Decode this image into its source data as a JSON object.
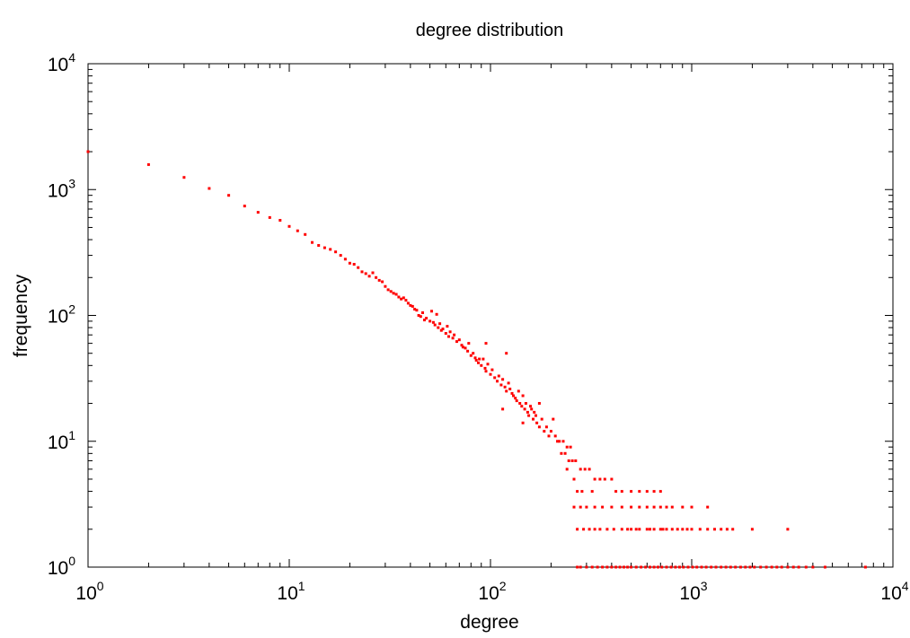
{
  "chart_data": {
    "type": "scatter",
    "title": "degree distribution",
    "xlabel": "degree",
    "ylabel": "frequency",
    "xscale": "log",
    "yscale": "log",
    "xlim": [
      1,
      10000
    ],
    "ylim": [
      1,
      10000
    ],
    "grid": false,
    "legend": "none",
    "marker_color": "#ff0000",
    "x_ticks": [
      {
        "base": "10",
        "exp": "0"
      },
      {
        "base": "10",
        "exp": "1"
      },
      {
        "base": "10",
        "exp": "2"
      },
      {
        "base": "10",
        "exp": "3"
      },
      {
        "base": "10",
        "exp": "4"
      }
    ],
    "y_ticks": [
      {
        "base": "10",
        "exp": "0"
      },
      {
        "base": "10",
        "exp": "1"
      },
      {
        "base": "10",
        "exp": "2"
      },
      {
        "base": "10",
        "exp": "3"
      },
      {
        "base": "10",
        "exp": "4"
      }
    ],
    "series": [
      {
        "points": [
          [
            1,
            2000
          ],
          [
            2,
            1580
          ],
          [
            3,
            1250
          ],
          [
            4,
            1020
          ],
          [
            5,
            900
          ],
          [
            6,
            740
          ],
          [
            7,
            660
          ],
          [
            8,
            600
          ],
          [
            9,
            570
          ],
          [
            10,
            510
          ],
          [
            11,
            470
          ],
          [
            12,
            440
          ],
          [
            13,
            380
          ],
          [
            14,
            360
          ],
          [
            15,
            345
          ],
          [
            16,
            335
          ],
          [
            17,
            320
          ],
          [
            18,
            300
          ],
          [
            19,
            280
          ],
          [
            20,
            260
          ],
          [
            21,
            255
          ],
          [
            22,
            240
          ],
          [
            23,
            222
          ],
          [
            24,
            215
          ],
          [
            25,
            205
          ],
          [
            26,
            218
          ],
          [
            27,
            200
          ],
          [
            28,
            190
          ],
          [
            29,
            185
          ],
          [
            30,
            170
          ],
          [
            31,
            160
          ],
          [
            32,
            155
          ],
          [
            33,
            150
          ],
          [
            34,
            147
          ],
          [
            35,
            140
          ],
          [
            36,
            135
          ],
          [
            37,
            138
          ],
          [
            38,
            132
          ],
          [
            39,
            125
          ],
          [
            40,
            120
          ],
          [
            41,
            118
          ],
          [
            42,
            112
          ],
          [
            43,
            110
          ],
          [
            44,
            100
          ],
          [
            45,
            98
          ],
          [
            46,
            105
          ],
          [
            47,
            92
          ],
          [
            48,
            95
          ],
          [
            50,
            90
          ],
          [
            51,
            108
          ],
          [
            52,
            88
          ],
          [
            53,
            84
          ],
          [
            54,
            102
          ],
          [
            55,
            80
          ],
          [
            56,
            86
          ],
          [
            57,
            76
          ],
          [
            58,
            78
          ],
          [
            60,
            72
          ],
          [
            61,
            82
          ],
          [
            62,
            68
          ],
          [
            63,
            74
          ],
          [
            65,
            66
          ],
          [
            66,
            70
          ],
          [
            68,
            62
          ],
          [
            70,
            64
          ],
          [
            72,
            58
          ],
          [
            73,
            56
          ],
          [
            75,
            55
          ],
          [
            77,
            52
          ],
          [
            78,
            60
          ],
          [
            80,
            48
          ],
          [
            82,
            50
          ],
          [
            84,
            46
          ],
          [
            85,
            44
          ],
          [
            87,
            42
          ],
          [
            90,
            40
          ],
          [
            92,
            45
          ],
          [
            94,
            38
          ],
          [
            95,
            36
          ],
          [
            97,
            41
          ],
          [
            100,
            34
          ],
          [
            102,
            37
          ],
          [
            105,
            32
          ],
          [
            108,
            30
          ],
          [
            110,
            33
          ],
          [
            113,
            28
          ],
          [
            115,
            31
          ],
          [
            118,
            27
          ],
          [
            120,
            25
          ],
          [
            123,
            29
          ],
          [
            125,
            26
          ],
          [
            128,
            24
          ],
          [
            130,
            23
          ],
          [
            133,
            22
          ],
          [
            135,
            21
          ],
          [
            138,
            25
          ],
          [
            140,
            20
          ],
          [
            143,
            19
          ],
          [
            145,
            23
          ],
          [
            148,
            18
          ],
          [
            150,
            20
          ],
          [
            153,
            17
          ],
          [
            155,
            16
          ],
          [
            158,
            19
          ],
          [
            160,
            18
          ],
          [
            163,
            15
          ],
          [
            165,
            17
          ],
          [
            168,
            16
          ],
          [
            170,
            14
          ],
          [
            175,
            13
          ],
          [
            180,
            15
          ],
          [
            185,
            12
          ],
          [
            190,
            13
          ],
          [
            195,
            11
          ],
          [
            200,
            12
          ],
          [
            210,
            11
          ],
          [
            220,
            10
          ],
          [
            230,
            10
          ],
          [
            240,
            9
          ],
          [
            250,
            9
          ],
          [
            120,
            50
          ],
          [
            95,
            60
          ],
          [
            88,
            45
          ],
          [
            115,
            18
          ],
          [
            145,
            14
          ],
          [
            175,
            20
          ],
          [
            205,
            15
          ],
          [
            215,
            10
          ],
          [
            225,
            8
          ],
          [
            235,
            8
          ],
          [
            245,
            7
          ],
          [
            255,
            7
          ],
          [
            265,
            7
          ],
          [
            280,
            6
          ],
          [
            295,
            6
          ],
          [
            310,
            6
          ],
          [
            330,
            5
          ],
          [
            350,
            5
          ],
          [
            370,
            5
          ],
          [
            400,
            5
          ],
          [
            420,
            4
          ],
          [
            450,
            4
          ],
          [
            500,
            4
          ],
          [
            550,
            4
          ],
          [
            600,
            4
          ],
          [
            650,
            4
          ],
          [
            700,
            4
          ],
          [
            260,
            5
          ],
          [
            270,
            4
          ],
          [
            285,
            4
          ],
          [
            240,
            6
          ],
          [
            320,
            4
          ],
          [
            300,
            3
          ],
          [
            330,
            3
          ],
          [
            360,
            3
          ],
          [
            400,
            3
          ],
          [
            450,
            3
          ],
          [
            500,
            3
          ],
          [
            550,
            3
          ],
          [
            600,
            3
          ],
          [
            650,
            3
          ],
          [
            700,
            3
          ],
          [
            750,
            3
          ],
          [
            800,
            3
          ],
          [
            900,
            3
          ],
          [
            1000,
            3
          ],
          [
            1200,
            3
          ],
          [
            280,
            3
          ],
          [
            260,
            3
          ],
          [
            270,
            2
          ],
          [
            290,
            2
          ],
          [
            310,
            2
          ],
          [
            330,
            2
          ],
          [
            350,
            2
          ],
          [
            380,
            2
          ],
          [
            410,
            2
          ],
          [
            450,
            2
          ],
          [
            500,
            2
          ],
          [
            550,
            2
          ],
          [
            600,
            2
          ],
          [
            650,
            2
          ],
          [
            700,
            2
          ],
          [
            750,
            2
          ],
          [
            800,
            2
          ],
          [
            850,
            2
          ],
          [
            900,
            2
          ],
          [
            950,
            2
          ],
          [
            1000,
            2
          ],
          [
            1100,
            2
          ],
          [
            1200,
            2
          ],
          [
            1300,
            2
          ],
          [
            1400,
            2
          ],
          [
            1500,
            2
          ],
          [
            1600,
            2
          ],
          [
            2000,
            2
          ],
          [
            3000,
            2
          ],
          [
            480,
            2
          ],
          [
            530,
            2
          ],
          [
            620,
            2
          ],
          [
            720,
            2
          ],
          [
            270,
            1
          ],
          [
            280,
            1
          ],
          [
            300,
            1
          ],
          [
            320,
            1
          ],
          [
            340,
            1
          ],
          [
            360,
            1
          ],
          [
            380,
            1
          ],
          [
            400,
            1
          ],
          [
            420,
            1
          ],
          [
            440,
            1
          ],
          [
            460,
            1
          ],
          [
            480,
            1
          ],
          [
            500,
            1
          ],
          [
            530,
            1
          ],
          [
            560,
            1
          ],
          [
            590,
            1
          ],
          [
            620,
            1
          ],
          [
            650,
            1
          ],
          [
            680,
            1
          ],
          [
            710,
            1
          ],
          [
            750,
            1
          ],
          [
            790,
            1
          ],
          [
            830,
            1
          ],
          [
            870,
            1
          ],
          [
            910,
            1
          ],
          [
            960,
            1
          ],
          [
            1010,
            1
          ],
          [
            1060,
            1
          ],
          [
            1120,
            1
          ],
          [
            1180,
            1
          ],
          [
            1250,
            1
          ],
          [
            1320,
            1
          ],
          [
            1400,
            1
          ],
          [
            1480,
            1
          ],
          [
            1560,
            1
          ],
          [
            1650,
            1
          ],
          [
            1750,
            1
          ],
          [
            1850,
            1
          ],
          [
            1950,
            1
          ],
          [
            2050,
            1
          ],
          [
            2200,
            1
          ],
          [
            2350,
            1
          ],
          [
            2500,
            1
          ],
          [
            2650,
            1
          ],
          [
            2800,
            1
          ],
          [
            3000,
            1
          ],
          [
            3200,
            1
          ],
          [
            3400,
            1
          ],
          [
            3700,
            1
          ],
          [
            4000,
            1
          ],
          [
            4600,
            1
          ],
          [
            7300,
            1
          ]
        ]
      }
    ]
  }
}
